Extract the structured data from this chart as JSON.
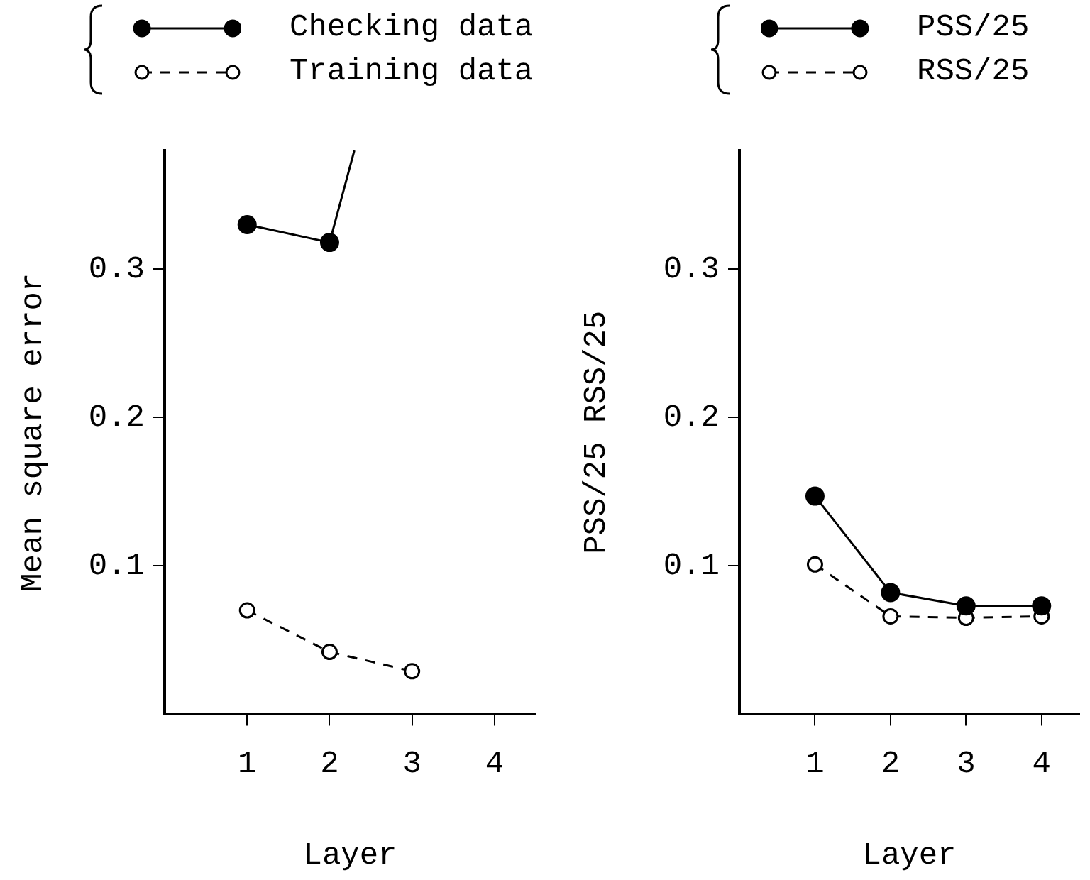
{
  "chart_data": [
    {
      "type": "line",
      "xlabel": "Layer",
      "ylabel": "Mean square error",
      "xlim": [
        0,
        4.5
      ],
      "xticks": [
        1,
        2,
        3,
        4
      ],
      "ylim": [
        0,
        0.38
      ],
      "yticks": [
        0.1,
        0.2,
        0.3
      ],
      "grid": false,
      "legend": "top",
      "marker": "circle",
      "series": [
        {
          "name": "Checking data",
          "color": "#000000",
          "line_style": "solid",
          "x": [
            1,
            2,
            2.3
          ],
          "values": [
            0.33,
            0.318,
            0.38
          ]
        },
        {
          "name": "Training data",
          "color": "#000000",
          "line_style": "dashed",
          "x": [
            1,
            2,
            3
          ],
          "values": [
            0.07,
            0.042,
            0.029
          ]
        }
      ]
    },
    {
      "type": "line",
      "xlabel": "Layer",
      "ylabel": "PSS/25 RSS/25",
      "xlim": [
        0,
        4.5
      ],
      "xticks": [
        1,
        2,
        3,
        4
      ],
      "ylim": [
        0,
        0.38
      ],
      "yticks": [
        0.1,
        0.2,
        0.3
      ],
      "grid": false,
      "legend": "top",
      "marker": "circle",
      "series": [
        {
          "name": "PSS/25",
          "color": "#000000",
          "line_style": "solid",
          "x": [
            1,
            2,
            3,
            4
          ],
          "values": [
            0.147,
            0.082,
            0.073,
            0.073
          ]
        },
        {
          "name": "RSS/25",
          "color": "#000000",
          "line_style": "dashed",
          "x": [
            1,
            2,
            3,
            4
          ],
          "values": [
            0.101,
            0.066,
            0.065,
            0.066
          ]
        }
      ]
    }
  ]
}
